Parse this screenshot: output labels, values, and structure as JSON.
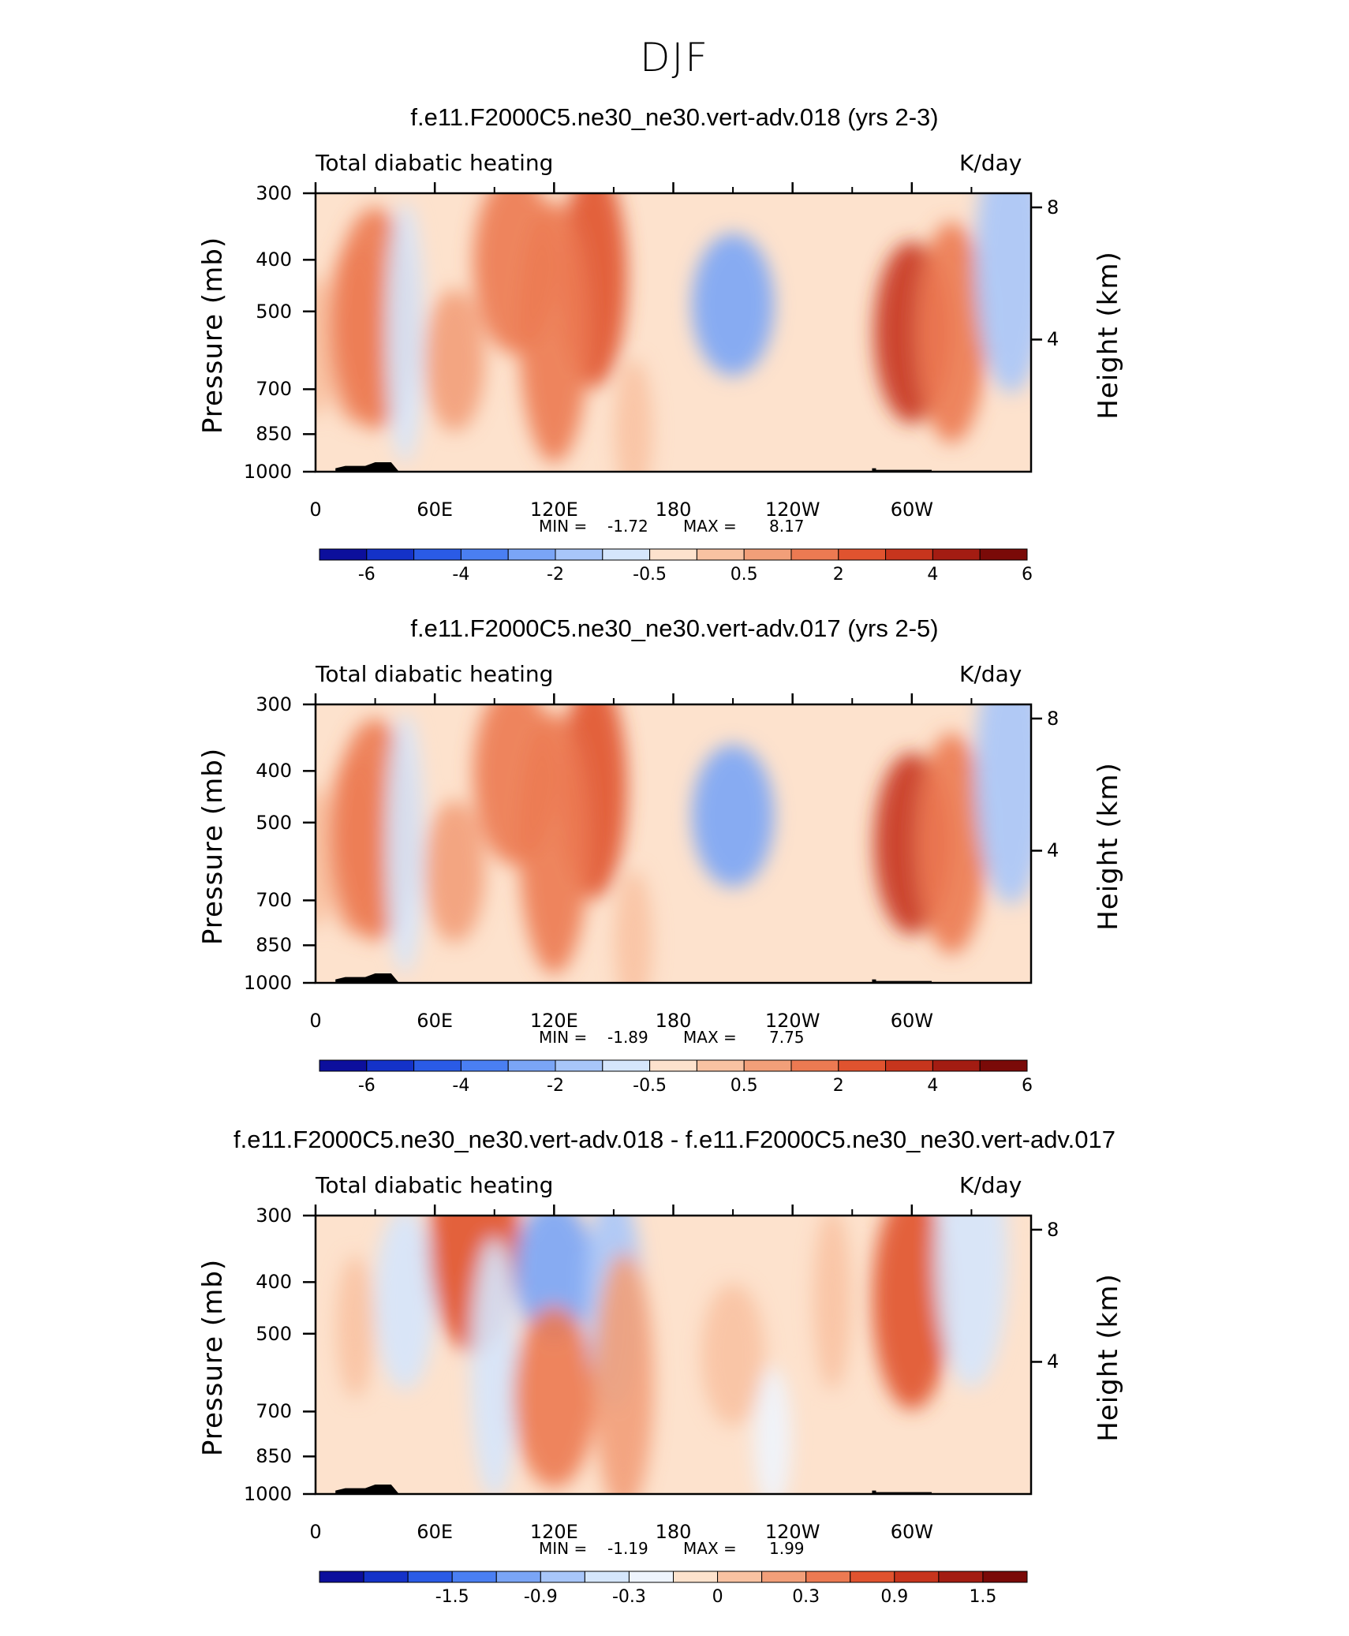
{
  "figure_title": "DJF",
  "chart_data": [
    {
      "type": "heatmap",
      "title": "f.e11.F2000C5.ne30_ne30.vert-adv.018 (yrs 2-3)",
      "left_label": "Total diabatic heating",
      "right_label": "K/day",
      "xlabel": "",
      "ylabel": "Pressure (mb)",
      "ylabel_right": "Height (km)",
      "x_ticks": [
        "0",
        "60E",
        "120E",
        "180",
        "120W",
        "60W"
      ],
      "y_ticks": [
        "300",
        "400",
        "500",
        "700",
        "850",
        "1000"
      ],
      "y_right_ticks": [
        "8",
        "4"
      ],
      "min_label": "MIN =",
      "min_value": "-1.72",
      "max_label": "MAX =",
      "max_value": "8.17",
      "colorbar_labels": [
        "-6",
        "-4",
        "-2",
        "-0.5",
        "0.5",
        "2",
        "4",
        "6"
      ],
      "colorbar_colors": [
        "#0c0f9c",
        "#1432c8",
        "#2a5be6",
        "#4a7ff2",
        "#7aa5f6",
        "#a8c6f9",
        "#d5e6fc",
        "#fde2cd",
        "#f8c2a2",
        "#f29f79",
        "#ec7a52",
        "#e0532f",
        "#c7351d",
        "#a31c12",
        "#7a0a08"
      ],
      "features": [
        {
          "lon": 0,
          "level": 0.55,
          "cat": 1
        },
        {
          "lon": 20,
          "level": 0.5,
          "cat": 2
        },
        {
          "lon": 30,
          "level": 0.45,
          "cat": 3
        },
        {
          "lon": 45,
          "level": 0.5,
          "cat": -1
        },
        {
          "lon": 70,
          "level": 0.6,
          "cat": 2
        },
        {
          "lon": 100,
          "level": 0.25,
          "cat": 3
        },
        {
          "lon": 140,
          "level": 0.3,
          "cat": 4
        },
        {
          "lon": 120,
          "level": 0.5,
          "cat": 3
        },
        {
          "lon": 210,
          "level": 0.4,
          "cat": -3
        },
        {
          "lon": 300,
          "level": 0.5,
          "cat": 5
        },
        {
          "lon": 320,
          "level": 0.5,
          "cat": 3
        },
        {
          "lon": 350,
          "level": 0.25,
          "cat": -2
        },
        {
          "lon": 160,
          "level": 0.85,
          "cat": 1
        }
      ]
    },
    {
      "type": "heatmap",
      "title": "f.e11.F2000C5.ne30_ne30.vert-adv.017 (yrs 2-5)",
      "left_label": "Total diabatic heating",
      "right_label": "K/day",
      "xlabel": "",
      "ylabel": "Pressure (mb)",
      "ylabel_right": "Height (km)",
      "x_ticks": [
        "0",
        "60E",
        "120E",
        "180",
        "120W",
        "60W"
      ],
      "y_ticks": [
        "300",
        "400",
        "500",
        "700",
        "850",
        "1000"
      ],
      "y_right_ticks": [
        "8",
        "4"
      ],
      "min_label": "MIN =",
      "min_value": "-1.89",
      "max_label": "MAX =",
      "max_value": "7.75",
      "colorbar_labels": [
        "-6",
        "-4",
        "-2",
        "-0.5",
        "0.5",
        "2",
        "4",
        "6"
      ],
      "colorbar_colors": [
        "#0c0f9c",
        "#1432c8",
        "#2a5be6",
        "#4a7ff2",
        "#7aa5f6",
        "#a8c6f9",
        "#d5e6fc",
        "#fde2cd",
        "#f8c2a2",
        "#f29f79",
        "#ec7a52",
        "#e0532f",
        "#c7351d",
        "#a31c12",
        "#7a0a08"
      ],
      "features": [
        {
          "lon": 0,
          "level": 0.55,
          "cat": 1
        },
        {
          "lon": 20,
          "level": 0.5,
          "cat": 2
        },
        {
          "lon": 30,
          "level": 0.45,
          "cat": 3
        },
        {
          "lon": 45,
          "level": 0.5,
          "cat": -1
        },
        {
          "lon": 70,
          "level": 0.6,
          "cat": 2
        },
        {
          "lon": 100,
          "level": 0.25,
          "cat": 3
        },
        {
          "lon": 140,
          "level": 0.3,
          "cat": 4
        },
        {
          "lon": 120,
          "level": 0.5,
          "cat": 3
        },
        {
          "lon": 210,
          "level": 0.4,
          "cat": -3
        },
        {
          "lon": 300,
          "level": 0.5,
          "cat": 5
        },
        {
          "lon": 320,
          "level": 0.5,
          "cat": 3
        },
        {
          "lon": 350,
          "level": 0.25,
          "cat": -2
        },
        {
          "lon": 160,
          "level": 0.85,
          "cat": 1
        }
      ]
    },
    {
      "type": "heatmap",
      "title": "f.e11.F2000C5.ne30_ne30.vert-adv.018 - f.e11.F2000C5.ne30_ne30.vert-adv.017",
      "left_label": "Total diabatic heating",
      "right_label": "K/day",
      "xlabel": "",
      "ylabel": "Pressure (mb)",
      "ylabel_right": "Height (km)",
      "x_ticks": [
        "0",
        "60E",
        "120E",
        "180",
        "120W",
        "60W"
      ],
      "y_ticks": [
        "300",
        "400",
        "500",
        "700",
        "850",
        "1000"
      ],
      "y_right_ticks": [
        "8",
        "4"
      ],
      "min_label": "MIN =",
      "min_value": "-1.19",
      "max_label": "MAX =",
      "max_value": "1.99",
      "colorbar_labels": [
        "-1.5",
        "-0.9",
        "-0.3",
        "0",
        "0.3",
        "0.9",
        "1.5"
      ],
      "colorbar_colors": [
        "#0c0f9c",
        "#1432c8",
        "#2a5be6",
        "#4a7ff2",
        "#7aa5f6",
        "#a8c6f9",
        "#d5e6fc",
        "#eef4fd",
        "#fde2cd",
        "#f8c2a2",
        "#f29f79",
        "#ec7a52",
        "#e0532f",
        "#c7351d",
        "#a31c12",
        "#7a0a08"
      ],
      "features": [
        {
          "lon": 20,
          "level": 0.4,
          "cat": 1
        },
        {
          "lon": 45,
          "level": 0.3,
          "cat": -2
        },
        {
          "lon": 80,
          "level": 0.1,
          "cat": 4
        },
        {
          "lon": 90,
          "level": 0.55,
          "cat": -2
        },
        {
          "lon": 120,
          "level": 0.2,
          "cat": -4
        },
        {
          "lon": 120,
          "level": 0.65,
          "cat": 3
        },
        {
          "lon": 150,
          "level": 0.3,
          "cat": -3
        },
        {
          "lon": 155,
          "level": 0.6,
          "cat": 2
        },
        {
          "lon": 210,
          "level": 0.5,
          "cat": 1
        },
        {
          "lon": 260,
          "level": 0.3,
          "cat": 1
        },
        {
          "lon": 300,
          "level": 0.3,
          "cat": 4
        },
        {
          "lon": 330,
          "level": 0.15,
          "cat": -2
        },
        {
          "lon": 230,
          "level": 0.8,
          "cat": -1
        }
      ]
    }
  ]
}
